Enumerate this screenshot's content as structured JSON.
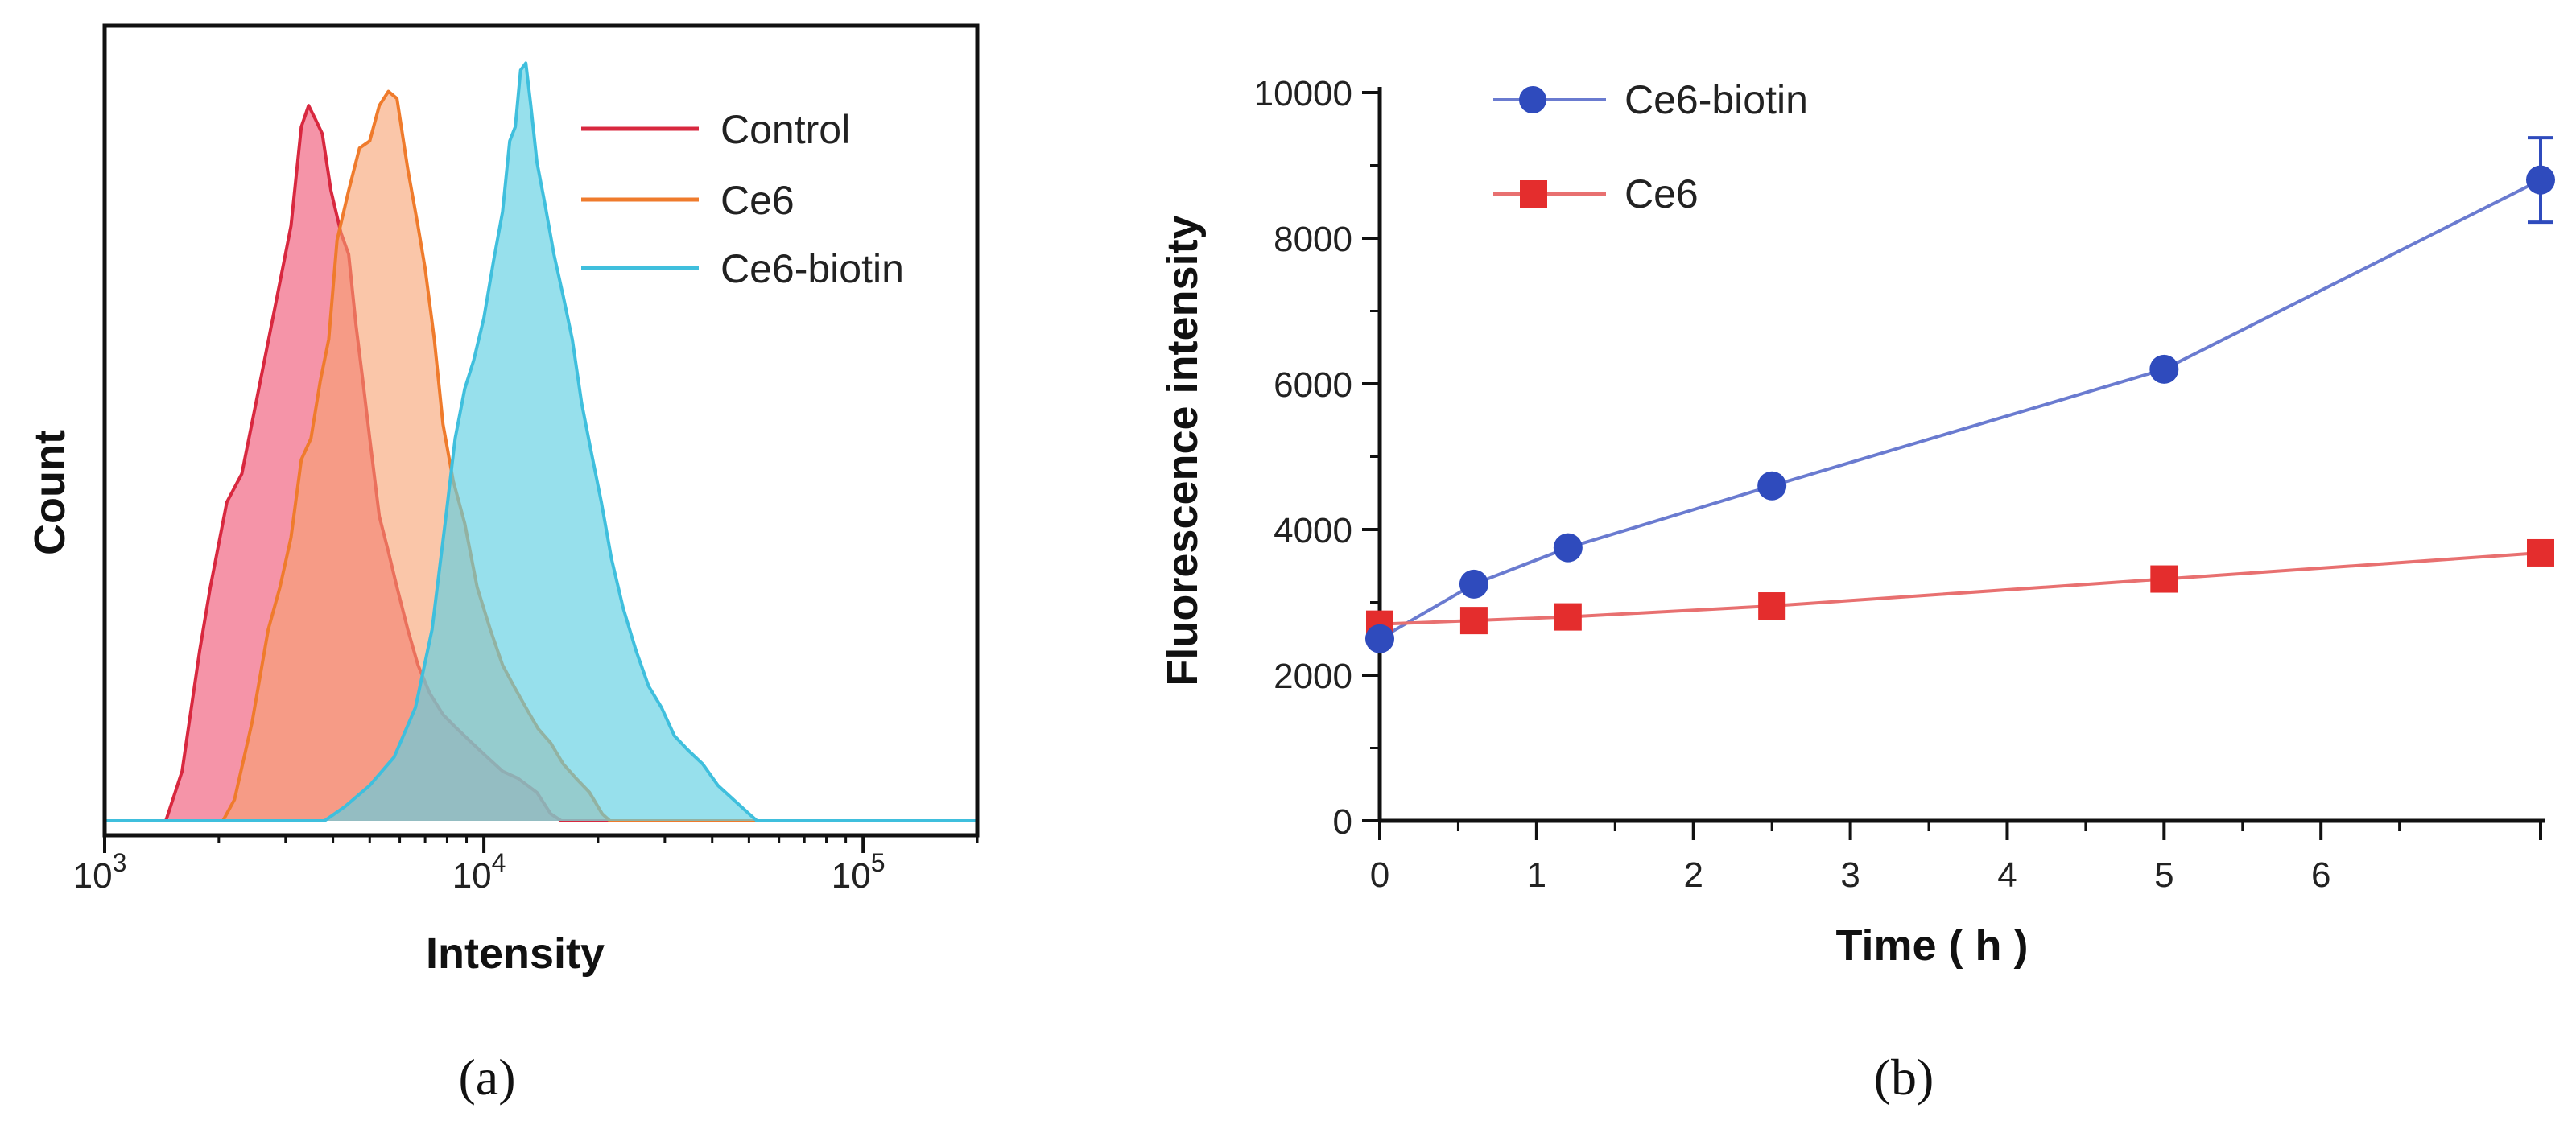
{
  "chart_data": [
    {
      "panel_label": "(a)",
      "type": "area",
      "title": "",
      "xlabel": "Intensity",
      "ylabel": "Count",
      "x_scale": "log",
      "xlim": [
        1000,
        200000
      ],
      "ylim": [
        0,
        1
      ],
      "x_ticks": [
        {
          "value": 1000,
          "base": "10",
          "exp": "3"
        },
        {
          "value": 10000,
          "base": "10",
          "exp": "4"
        },
        {
          "value": 100000,
          "base": "10",
          "exp": "5"
        }
      ],
      "legend_position": "top-right",
      "series": [
        {
          "name": "Control",
          "line_color": "#d8283f",
          "fill_color": "#ef5a7a",
          "fill_opacity": 0.65,
          "points": [
            [
              1000,
              0
            ],
            [
              1450,
              0
            ],
            [
              1600,
              0.07
            ],
            [
              1780,
              0.24
            ],
            [
              1900,
              0.33
            ],
            [
              2100,
              0.45
            ],
            [
              2300,
              0.49
            ],
            [
              2550,
              0.61
            ],
            [
              2800,
              0.72
            ],
            [
              3100,
              0.84
            ],
            [
              3300,
              0.98
            ],
            [
              3450,
              1.01
            ],
            [
              3600,
              0.99
            ],
            [
              3750,
              0.97
            ],
            [
              3950,
              0.89
            ],
            [
              4200,
              0.83
            ],
            [
              4400,
              0.8
            ],
            [
              4600,
              0.7
            ],
            [
              4800,
              0.62
            ],
            [
              5000,
              0.54
            ],
            [
              5300,
              0.43
            ],
            [
              5600,
              0.38
            ],
            [
              5900,
              0.33
            ],
            [
              6300,
              0.27
            ],
            [
              6700,
              0.22
            ],
            [
              7200,
              0.18
            ],
            [
              7800,
              0.15
            ],
            [
              8500,
              0.13
            ],
            [
              9300,
              0.11
            ],
            [
              10200,
              0.09
            ],
            [
              11200,
              0.07
            ],
            [
              12300,
              0.06
            ],
            [
              13800,
              0.04
            ],
            [
              15000,
              0.01
            ],
            [
              16000,
              0
            ],
            [
              200000,
              0
            ]
          ]
        },
        {
          "name": "Ce6",
          "line_color": "#ef7b2c",
          "fill_color": "#f6a070",
          "fill_opacity": 0.6,
          "points": [
            [
              1000,
              0
            ],
            [
              2050,
              0
            ],
            [
              2200,
              0.03
            ],
            [
              2450,
              0.14
            ],
            [
              2700,
              0.27
            ],
            [
              2900,
              0.33
            ],
            [
              3100,
              0.4
            ],
            [
              3300,
              0.51
            ],
            [
              3500,
              0.54
            ],
            [
              3700,
              0.62
            ],
            [
              3900,
              0.68
            ],
            [
              4100,
              0.82
            ],
            [
              4400,
              0.89
            ],
            [
              4700,
              0.95
            ],
            [
              5000,
              0.96
            ],
            [
              5300,
              1.01
            ],
            [
              5600,
              1.03
            ],
            [
              5900,
              1.02
            ],
            [
              6300,
              0.92
            ],
            [
              6700,
              0.84
            ],
            [
              7000,
              0.78
            ],
            [
              7400,
              0.68
            ],
            [
              7800,
              0.56
            ],
            [
              8300,
              0.48
            ],
            [
              8900,
              0.42
            ],
            [
              9600,
              0.33
            ],
            [
              10400,
              0.27
            ],
            [
              11200,
              0.22
            ],
            [
              12000,
              0.19
            ],
            [
              12900,
              0.16
            ],
            [
              13900,
              0.13
            ],
            [
              15000,
              0.11
            ],
            [
              16200,
              0.08
            ],
            [
              17500,
              0.06
            ],
            [
              19000,
              0.04
            ],
            [
              20500,
              0.01
            ],
            [
              21500,
              0
            ],
            [
              200000,
              0
            ]
          ]
        },
        {
          "name": "Ce6-biotin",
          "line_color": "#3fbfdd",
          "fill_color": "#5fcfe2",
          "fill_opacity": 0.65,
          "points": [
            [
              1000,
              0
            ],
            [
              3800,
              0
            ],
            [
              4300,
              0.02
            ],
            [
              5000,
              0.05
            ],
            [
              5800,
              0.09
            ],
            [
              6600,
              0.16
            ],
            [
              7300,
              0.27
            ],
            [
              7900,
              0.42
            ],
            [
              8400,
              0.54
            ],
            [
              8900,
              0.61
            ],
            [
              9400,
              0.65
            ],
            [
              10000,
              0.71
            ],
            [
              10600,
              0.79
            ],
            [
              11200,
              0.86
            ],
            [
              11700,
              0.96
            ],
            [
              12100,
              0.98
            ],
            [
              12500,
              1.06
            ],
            [
              12900,
              1.07
            ],
            [
              13300,
              1.01
            ],
            [
              13800,
              0.93
            ],
            [
              14500,
              0.87
            ],
            [
              15300,
              0.8
            ],
            [
              16200,
              0.74
            ],
            [
              17100,
              0.68
            ],
            [
              18100,
              0.59
            ],
            [
              19200,
              0.52
            ],
            [
              20400,
              0.45
            ],
            [
              21700,
              0.37
            ],
            [
              23300,
              0.3
            ],
            [
              25200,
              0.24
            ],
            [
              27200,
              0.19
            ],
            [
              29400,
              0.16
            ],
            [
              31800,
              0.12
            ],
            [
              34500,
              0.1
            ],
            [
              37800,
              0.08
            ],
            [
              41400,
              0.05
            ],
            [
              45500,
              0.03
            ],
            [
              50000,
              0.01
            ],
            [
              52500,
              0
            ],
            [
              200000,
              0
            ]
          ]
        }
      ]
    },
    {
      "panel_label": "(b)",
      "type": "line",
      "title": "",
      "xlabel": "Time ( h )",
      "ylabel": "Fluorescence intensity",
      "xlim": [
        0,
        7.4
      ],
      "ylim": [
        0,
        10000
      ],
      "x_tick_labels": [
        "0",
        "1",
        "2",
        "3",
        "4",
        "5",
        "6"
      ],
      "y_tick_labels": [
        "0",
        "2000",
        "4000",
        "6000",
        "8000",
        "10000"
      ],
      "grid": false,
      "legend_position": "top-left",
      "series": [
        {
          "name": "Ce6-biotin",
          "color": "#2f4bbd",
          "line_color": "#6a7bd0",
          "marker": "circle",
          "x": [
            0,
            0.6,
            1.2,
            2.5,
            5,
            7.4
          ],
          "y": [
            2500,
            3250,
            3750,
            4600,
            6200,
            8800
          ],
          "y_err": [
            0,
            0,
            0,
            0,
            0,
            580
          ]
        },
        {
          "name": "Ce6",
          "color": "#e42d2d",
          "line_color": "#e87070",
          "marker": "square",
          "x": [
            0,
            0.6,
            1.2,
            2.5,
            5,
            7.4
          ],
          "y": [
            2700,
            2750,
            2800,
            2950,
            3320,
            3680
          ],
          "y_err": [
            0,
            0,
            0,
            0,
            0,
            0
          ]
        }
      ]
    }
  ]
}
